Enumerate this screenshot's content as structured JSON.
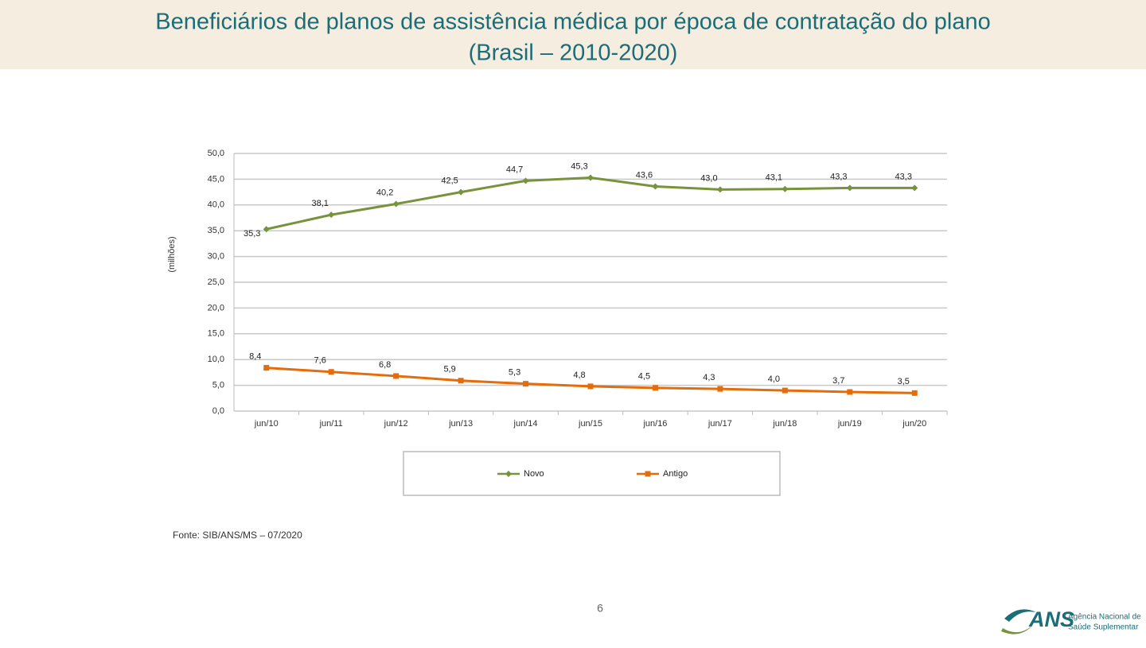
{
  "chart_data": {
    "type": "line",
    "title": "Beneficiários de planos de assistência médica por época de contratação do plano",
    "subtitle": "(Brasil – 2010-2020)",
    "y_label": "(milhões)",
    "categories": [
      "jun/10",
      "jun/11",
      "jun/12",
      "jun/13",
      "jun/14",
      "jun/15",
      "jun/16",
      "jun/17",
      "jun/18",
      "jun/19",
      "jun/20"
    ],
    "series": [
      {
        "name": "Novo",
        "color": "#77933c",
        "marker": "diamond",
        "values": [
          35.3,
          38.1,
          40.2,
          42.5,
          44.7,
          45.3,
          43.6,
          43.0,
          43.1,
          43.3,
          43.3
        ],
        "value_labels": [
          "35,3",
          "38,1",
          "40,2",
          "42,5",
          "44,7",
          "45,3",
          "43,6",
          "43,0",
          "43,1",
          "43,3",
          "43,3"
        ]
      },
      {
        "name": "Antigo",
        "color": "#e46c0a",
        "marker": "square",
        "values": [
          8.4,
          7.6,
          6.8,
          5.9,
          5.3,
          4.8,
          4.5,
          4.3,
          4.0,
          3.7,
          3.5
        ],
        "value_labels": [
          "8,4",
          "7,6",
          "6,8",
          "5,9",
          "5,3",
          "4,8",
          "4,5",
          "4,3",
          "4,0",
          "3,7",
          "3,5"
        ]
      }
    ],
    "ylim": [
      0,
      50
    ],
    "yticks": [
      {
        "value": 0,
        "label": "0,0"
      },
      {
        "value": 5,
        "label": "5,0"
      },
      {
        "value": 10,
        "label": "10,0"
      },
      {
        "value": 15,
        "label": "15,0"
      },
      {
        "value": 20,
        "label": "20,0"
      },
      {
        "value": 25,
        "label": "25,0"
      },
      {
        "value": 30,
        "label": "30,0"
      },
      {
        "value": 35,
        "label": "35,0"
      },
      {
        "value": 40,
        "label": "40,0"
      },
      {
        "value": 45,
        "label": "45,0"
      },
      {
        "value": 50,
        "label": "50,0"
      }
    ],
    "grid": true,
    "legend": "bottom"
  },
  "footer": {
    "source": "Fonte: SIB/ANS/MS – 07/2020",
    "page_number": "6"
  },
  "logo": {
    "acronym": "ANS",
    "line1": "Agência Nacional de",
    "line2": "Saúde Suplementar"
  }
}
